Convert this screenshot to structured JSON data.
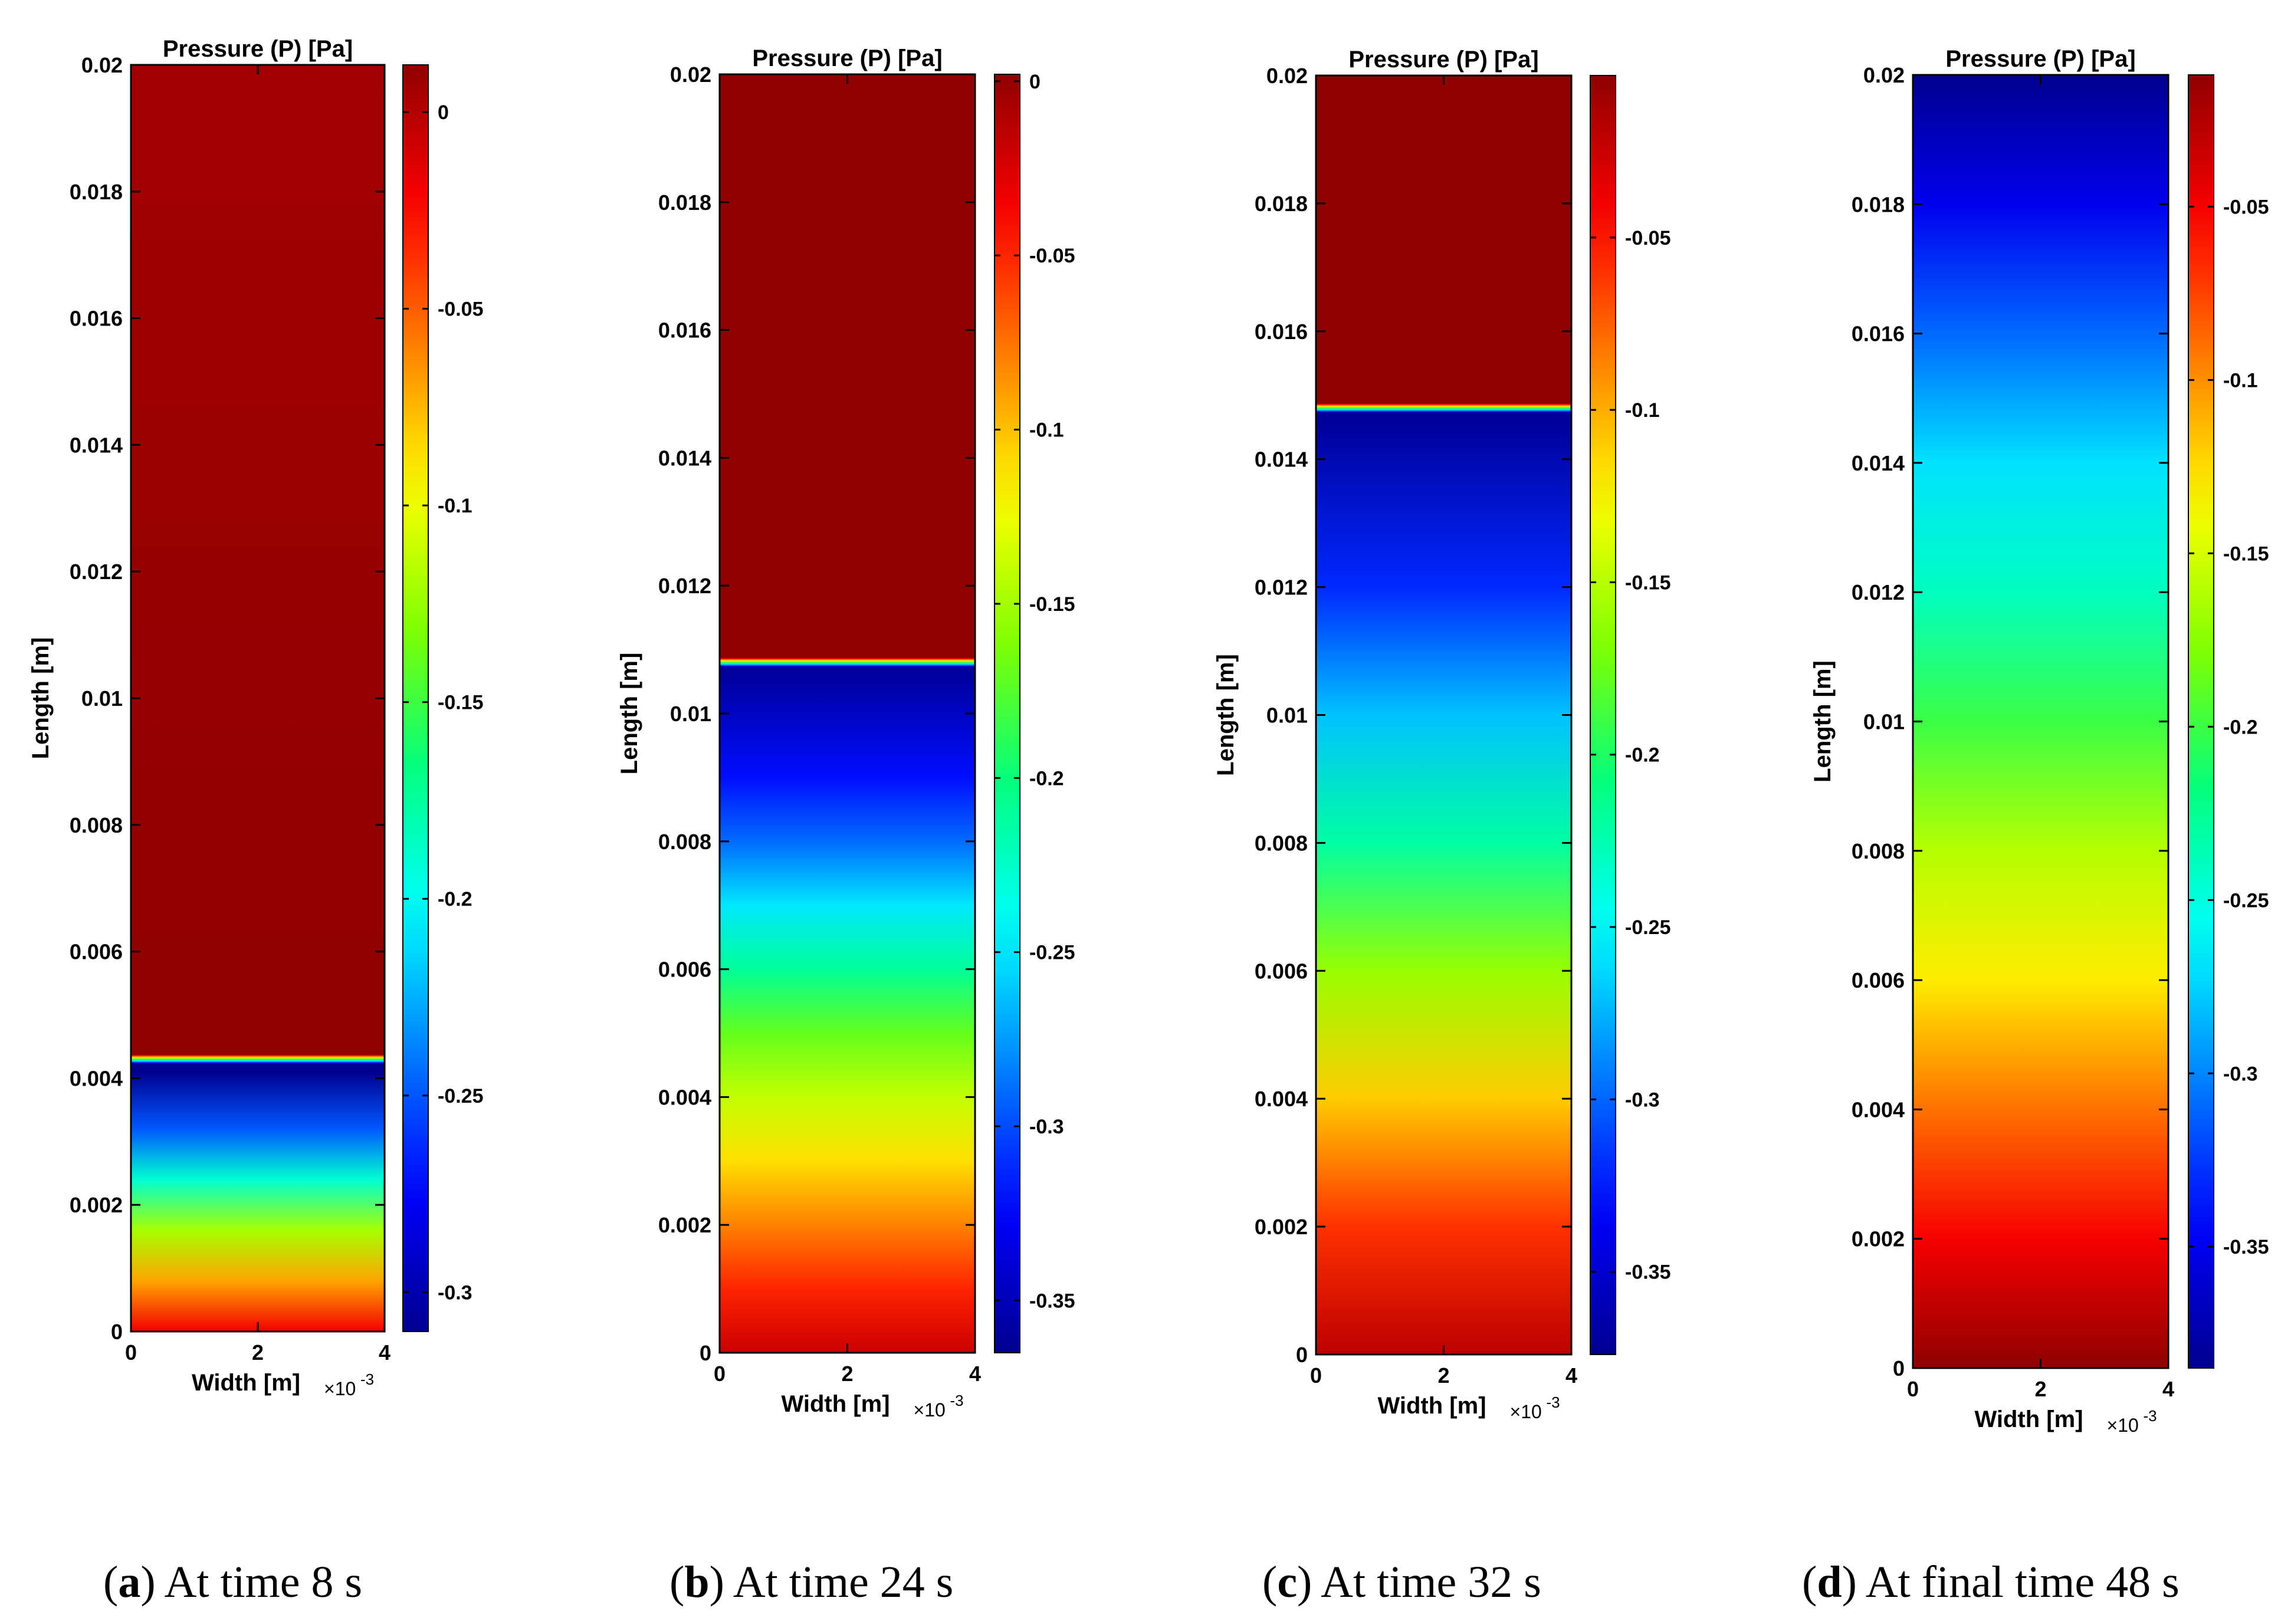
{
  "figure": {
    "axes_text_color": "#000000",
    "colormap": "jet",
    "colormap_stops": [
      "#00008f",
      "#0000ff",
      "#0080ff",
      "#00ffff",
      "#00ff80",
      "#80ff00",
      "#ffff00",
      "#ff8000",
      "#ff0000",
      "#8f0000"
    ]
  },
  "chart_data": [
    {
      "type": "heatmap",
      "title": "Pressure (P) [Pa]",
      "xlabel": "Width [m]",
      "x_exponent": "×10",
      "x_exponent_power": "-3",
      "ylabel": "Length [m]",
      "xlim": [
        0,
        0.004
      ],
      "ylim": [
        0,
        0.02
      ],
      "xticks": [
        "0",
        "2",
        "4"
      ],
      "yticks": [
        "0",
        "0.002",
        "0.004",
        "0.006",
        "0.008",
        "0.01",
        "0.012",
        "0.014",
        "0.016",
        "0.018",
        "0.02"
      ],
      "colorbar": {
        "clim": [
          -0.31,
          0.012
        ],
        "ticks": [
          0,
          -0.05,
          -0.1,
          -0.15,
          -0.2,
          -0.25,
          -0.3
        ],
        "tick_labels": [
          "0",
          "-0.05",
          "-0.1",
          "-0.15",
          "-0.2",
          "-0.25",
          "-0.3"
        ]
      },
      "front_position_m": 0.0043,
      "profile": [
        {
          "y": 0.0,
          "p": -0.02
        },
        {
          "y": 0.0008,
          "p": -0.07
        },
        {
          "y": 0.0016,
          "p": -0.12
        },
        {
          "y": 0.0024,
          "p": -0.19
        },
        {
          "y": 0.0032,
          "p": -0.25
        },
        {
          "y": 0.0041,
          "p": -0.31
        },
        {
          "y": 0.0043,
          "p": -0.31
        },
        {
          "y": 0.00431,
          "p": 0.012
        },
        {
          "y": 0.02,
          "p": 0.006
        }
      ],
      "caption_letter": "a",
      "caption_text": "At time 8 s"
    },
    {
      "type": "heatmap",
      "title": "Pressure (P) [Pa]",
      "xlabel": "Width [m]",
      "x_exponent": "×10",
      "x_exponent_power": "-3",
      "ylabel": "Length [m]",
      "xlim": [
        0,
        0.004
      ],
      "ylim": [
        0,
        0.02
      ],
      "xticks": [
        "0",
        "2",
        "4"
      ],
      "yticks": [
        "0",
        "0.002",
        "0.004",
        "0.006",
        "0.008",
        "0.01",
        "0.012",
        "0.014",
        "0.016",
        "0.018",
        "0.02"
      ],
      "colorbar": {
        "clim": [
          -0.365,
          0.002
        ],
        "ticks": [
          0,
          -0.05,
          -0.1,
          -0.15,
          -0.2,
          -0.25,
          -0.3,
          -0.35
        ],
        "tick_labels": [
          "0",
          "-0.05",
          "-0.1",
          "-0.15",
          "-0.2",
          "-0.25",
          "-0.3",
          "-0.35"
        ]
      },
      "front_position_m": 0.0108,
      "profile": [
        {
          "y": 0.0,
          "p": -0.02
        },
        {
          "y": 0.001,
          "p": -0.05
        },
        {
          "y": 0.002,
          "p": -0.08
        },
        {
          "y": 0.003,
          "p": -0.11
        },
        {
          "y": 0.004,
          "p": -0.14
        },
        {
          "y": 0.005,
          "p": -0.17
        },
        {
          "y": 0.006,
          "p": -0.21
        },
        {
          "y": 0.007,
          "p": -0.25
        },
        {
          "y": 0.008,
          "p": -0.29
        },
        {
          "y": 0.009,
          "p": -0.32
        },
        {
          "y": 0.0106,
          "p": -0.36
        },
        {
          "y": 0.0108,
          "p": -0.36
        },
        {
          "y": 0.01081,
          "p": 0.002
        },
        {
          "y": 0.02,
          "p": 0.002
        }
      ],
      "caption_letter": "b",
      "caption_text": "At time 24 s"
    },
    {
      "type": "heatmap",
      "title": "Pressure (P) [Pa]",
      "xlabel": "Width [m]",
      "x_exponent": "×10",
      "x_exponent_power": "-3",
      "ylabel": "Length [m]",
      "xlim": [
        0,
        0.004
      ],
      "ylim": [
        0,
        0.02
      ],
      "xticks": [
        "0",
        "2",
        "4"
      ],
      "yticks": [
        "0",
        "0.002",
        "0.004",
        "0.006",
        "0.008",
        "0.01",
        "0.012",
        "0.014",
        "0.016",
        "0.018",
        "0.02"
      ],
      "colorbar": {
        "clim": [
          -0.374,
          -0.003
        ],
        "ticks": [
          -0.05,
          -0.1,
          -0.15,
          -0.2,
          -0.25,
          -0.3,
          -0.35
        ],
        "tick_labels": [
          "-0.05",
          "-0.1",
          "-0.15",
          "-0.2",
          "-0.25",
          "-0.3",
          "-0.35"
        ]
      },
      "front_position_m": 0.0148,
      "profile": [
        {
          "y": 0.0,
          "p": -0.02
        },
        {
          "y": 0.002,
          "p": -0.06
        },
        {
          "y": 0.004,
          "p": -0.11
        },
        {
          "y": 0.006,
          "p": -0.16
        },
        {
          "y": 0.008,
          "p": -0.22
        },
        {
          "y": 0.01,
          "p": -0.27
        },
        {
          "y": 0.012,
          "p": -0.32
        },
        {
          "y": 0.0146,
          "p": -0.37
        },
        {
          "y": 0.0148,
          "p": -0.37
        },
        {
          "y": 0.01481,
          "p": -0.003
        },
        {
          "y": 0.02,
          "p": -0.003
        }
      ],
      "caption_letter": "c",
      "caption_text": "At time 32 s"
    },
    {
      "type": "heatmap",
      "title": "Pressure (P) [Pa]",
      "xlabel": "Width [m]",
      "x_exponent": "×10",
      "x_exponent_power": "-3",
      "ylabel": "Length [m]",
      "xlim": [
        0,
        0.004
      ],
      "ylim": [
        0,
        0.02
      ],
      "xticks": [
        "0",
        "2",
        "4"
      ],
      "yticks": [
        "0",
        "0.002",
        "0.004",
        "0.006",
        "0.008",
        "0.01",
        "0.012",
        "0.014",
        "0.016",
        "0.018",
        "0.02"
      ],
      "colorbar": {
        "clim": [
          -0.385,
          -0.012
        ],
        "ticks": [
          -0.05,
          -0.1,
          -0.15,
          -0.2,
          -0.25,
          -0.3,
          -0.35
        ],
        "tick_labels": [
          "-0.05",
          "-0.1",
          "-0.15",
          "-0.2",
          "-0.25",
          "-0.3",
          "-0.35"
        ]
      },
      "front_position_m": null,
      "profile": [
        {
          "y": 0.0,
          "p": -0.012
        },
        {
          "y": 0.002,
          "p": -0.05
        },
        {
          "y": 0.004,
          "p": -0.09
        },
        {
          "y": 0.006,
          "p": -0.13
        },
        {
          "y": 0.008,
          "p": -0.16
        },
        {
          "y": 0.01,
          "p": -0.2
        },
        {
          "y": 0.012,
          "p": -0.24
        },
        {
          "y": 0.014,
          "p": -0.27
        },
        {
          "y": 0.016,
          "p": -0.31
        },
        {
          "y": 0.018,
          "p": -0.35
        },
        {
          "y": 0.02,
          "p": -0.385
        }
      ],
      "caption_letter": "d",
      "caption_text": "At final time 48 s"
    }
  ]
}
